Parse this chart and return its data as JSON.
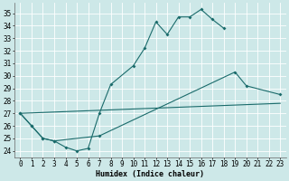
{
  "xlabel": "Humidex (Indice chaleur)",
  "bg_color": "#cde8e8",
  "grid_color": "#ffffff",
  "line_color": "#1a6b6b",
  "xlim": [
    -0.5,
    23.5
  ],
  "ylim": [
    23.5,
    35.8
  ],
  "yticks": [
    24,
    25,
    26,
    27,
    28,
    29,
    30,
    31,
    32,
    33,
    34,
    35
  ],
  "xticks": [
    0,
    1,
    2,
    3,
    4,
    5,
    6,
    7,
    8,
    9,
    10,
    11,
    12,
    13,
    14,
    15,
    16,
    17,
    18,
    19,
    20,
    21,
    22,
    23
  ],
  "line1_x": [
    0,
    1,
    2,
    3,
    4,
    5,
    6,
    7,
    8,
    10,
    11,
    12,
    13,
    14,
    15,
    16,
    17,
    18
  ],
  "line1_y": [
    27.0,
    26.0,
    25.0,
    24.8,
    24.3,
    24.0,
    24.2,
    27.0,
    29.3,
    30.8,
    32.2,
    34.3,
    33.3,
    34.7,
    34.7,
    35.3,
    34.5,
    33.8
  ],
  "line2_x": [
    0,
    1,
    2,
    3,
    7,
    19,
    20,
    23
  ],
  "line2_y": [
    27.0,
    26.0,
    25.0,
    24.8,
    25.2,
    30.3,
    29.2,
    28.5
  ],
  "line3_x": [
    0,
    23
  ],
  "line3_y": [
    27.0,
    27.8
  ],
  "tick_fontsize": 5.5,
  "xlabel_fontsize": 6.0
}
